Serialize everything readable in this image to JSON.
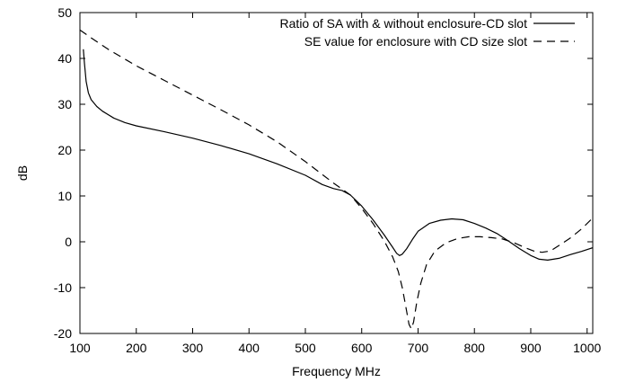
{
  "chart_data": {
    "type": "line",
    "title": "",
    "xlabel": "Frequency MHz",
    "ylabel": "dB",
    "xlim": [
      100,
      1010
    ],
    "ylim": [
      -20,
      50
    ],
    "xticks": [
      100,
      200,
      300,
      400,
      500,
      600,
      700,
      800,
      900,
      1000
    ],
    "yticks": [
      -20,
      -10,
      0,
      10,
      20,
      30,
      40,
      50
    ],
    "grid": false,
    "legend_position": "top-right",
    "series": [
      {
        "name": "Ratio of SA with & without enclosure-CD slot",
        "style": "solid",
        "color": "#000000",
        "points": [
          [
            106,
            42
          ],
          [
            108,
            39
          ],
          [
            111,
            35
          ],
          [
            115,
            32.5
          ],
          [
            120,
            31
          ],
          [
            130,
            29.5
          ],
          [
            140,
            28.5
          ],
          [
            160,
            27
          ],
          [
            180,
            26
          ],
          [
            200,
            25.3
          ],
          [
            250,
            24
          ],
          [
            300,
            22.6
          ],
          [
            350,
            21
          ],
          [
            400,
            19.2
          ],
          [
            450,
            17
          ],
          [
            500,
            14.5
          ],
          [
            530,
            12.5
          ],
          [
            550,
            11.6
          ],
          [
            565,
            11.2
          ],
          [
            580,
            10.2
          ],
          [
            600,
            7.8
          ],
          [
            620,
            4.8
          ],
          [
            640,
            1.5
          ],
          [
            655,
            -1.2
          ],
          [
            662,
            -2.5
          ],
          [
            667,
            -3
          ],
          [
            672,
            -2.7
          ],
          [
            680,
            -1.5
          ],
          [
            690,
            0.5
          ],
          [
            700,
            2.3
          ],
          [
            720,
            4
          ],
          [
            740,
            4.7
          ],
          [
            760,
            5
          ],
          [
            780,
            4.8
          ],
          [
            800,
            4
          ],
          [
            820,
            3
          ],
          [
            840,
            1.8
          ],
          [
            860,
            0.2
          ],
          [
            880,
            -1.5
          ],
          [
            900,
            -3
          ],
          [
            915,
            -3.8
          ],
          [
            930,
            -4
          ],
          [
            950,
            -3.6
          ],
          [
            970,
            -2.8
          ],
          [
            990,
            -2.1
          ],
          [
            1010,
            -1.3
          ]
        ]
      },
      {
        "name": "SE value for enclosure with CD size slot",
        "style": "dashed",
        "color": "#000000",
        "points": [
          [
            100,
            46.2
          ],
          [
            120,
            44.5
          ],
          [
            150,
            42
          ],
          [
            200,
            38.4
          ],
          [
            250,
            35.2
          ],
          [
            300,
            32
          ],
          [
            350,
            28.8
          ],
          [
            400,
            25.5
          ],
          [
            450,
            21.8
          ],
          [
            500,
            17.5
          ],
          [
            550,
            12.8
          ],
          [
            580,
            10.2
          ],
          [
            600,
            7.3
          ],
          [
            620,
            4
          ],
          [
            640,
            0.2
          ],
          [
            655,
            -3.3
          ],
          [
            665,
            -6.5
          ],
          [
            672,
            -10
          ],
          [
            678,
            -14
          ],
          [
            684,
            -18
          ],
          [
            688,
            -19
          ],
          [
            692,
            -17.5
          ],
          [
            698,
            -13
          ],
          [
            705,
            -9
          ],
          [
            715,
            -5
          ],
          [
            730,
            -2
          ],
          [
            750,
            -0.2
          ],
          [
            770,
            0.7
          ],
          [
            790,
            1.1
          ],
          [
            810,
            1.1
          ],
          [
            830,
            0.9
          ],
          [
            850,
            0.6
          ],
          [
            870,
            -0.2
          ],
          [
            890,
            -1.3
          ],
          [
            905,
            -2
          ],
          [
            920,
            -2.3
          ],
          [
            935,
            -2
          ],
          [
            950,
            -0.8
          ],
          [
            970,
            0.8
          ],
          [
            990,
            2.8
          ],
          [
            1010,
            5.2
          ]
        ]
      }
    ]
  }
}
